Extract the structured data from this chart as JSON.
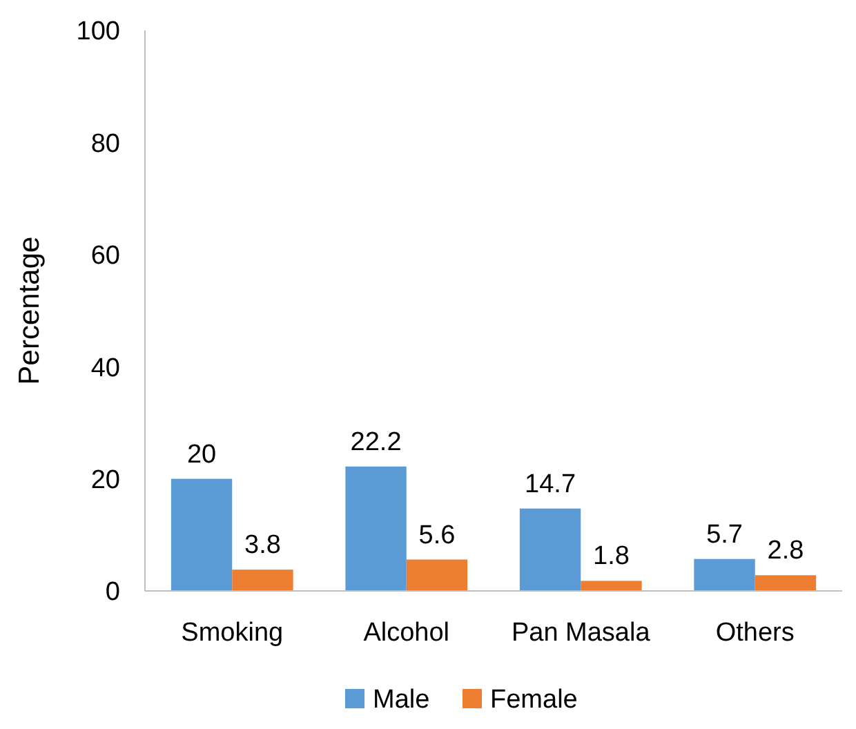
{
  "chart_data": {
    "type": "bar",
    "ylabel": "Percentage",
    "categories": [
      "Smoking",
      "Alcohol",
      "Pan Masala",
      "Others"
    ],
    "series": [
      {
        "name": "Male",
        "color": "#5b9bd5",
        "values": [
          20,
          22.2,
          14.7,
          5.7
        ]
      },
      {
        "name": "Female",
        "color": "#ed7d31",
        "values": [
          3.8,
          5.6,
          1.8,
          2.8
        ]
      }
    ],
    "ylim": [
      0,
      100
    ],
    "yticks": [
      0,
      20,
      40,
      60,
      80,
      100
    ],
    "data_labels": true,
    "legend": "bottom",
    "grid": false
  }
}
